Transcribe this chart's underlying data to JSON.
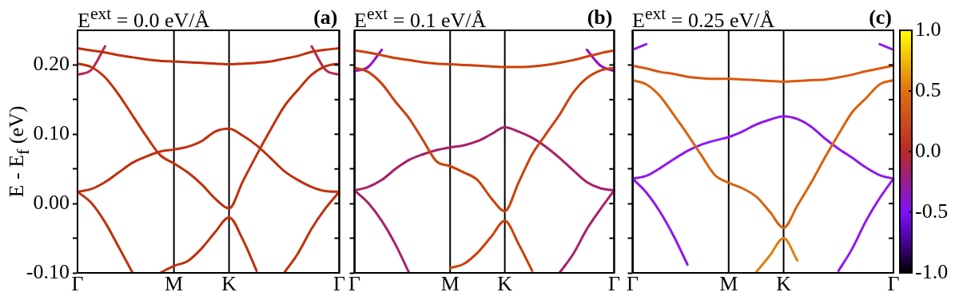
{
  "chart_data": [
    {
      "type": "line",
      "title": "E$^{ext}$ = 0.0 eV/Å",
      "annotations": [
        "(a)"
      ],
      "ylabel": "E - E$_{f}$ (eV)",
      "grid": "x",
      "categories": [
        "Γ",
        null,
        null,
        null,
        null,
        null,
        null,
        "M",
        null,
        null,
        null,
        "K",
        null,
        null,
        null,
        null,
        null,
        null,
        null,
        "Γ"
      ],
      "ylim": [
        -0.1,
        0.25
      ],
      "yticks": [
        {
          "value": -0.1,
          "label": "-0.10"
        },
        {
          "value": -0.05,
          "label": null
        },
        {
          "value": 0,
          "label": "0.00"
        },
        {
          "value": 0.05,
          "label": null
        },
        {
          "value": 0.1,
          "label": "0.10"
        },
        {
          "value": 0.15,
          "label": null
        },
        {
          "value": 0.2,
          "label": "0.20"
        }
      ],
      "series": [
        {
          "color": "#c0300c",
          "values": [
            0.224,
            0.221,
            0.218,
            0.214,
            0.211,
            0.208,
            0.206,
            0.205,
            0.204,
            0.203,
            0.202,
            0.201,
            0.202,
            0.203,
            0.205,
            0.209,
            0.213,
            0.219,
            0.222,
            0.224
          ]
        },
        {
          "color": "#c0300c",
          "values": [
            0.202,
            0.197,
            0.182,
            0.157,
            0.127,
            0.097,
            0.07,
            0.058,
            0.045,
            0.028,
            0.007,
            -0.007,
            0.032,
            0.07,
            0.106,
            0.14,
            0.164,
            0.186,
            0.198,
            0.202
          ]
        },
        {
          "color": "#c0300c",
          "values": [
            0.017,
            0.021,
            0.031,
            0.045,
            0.059,
            0.068,
            0.075,
            0.078,
            0.082,
            0.09,
            0.104,
            0.108,
            0.098,
            0.084,
            0.066,
            0.047,
            0.034,
            0.024,
            0.018,
            0.017
          ]
        },
        {
          "color": "#c0300c",
          "values": [
            0.017,
            0.001,
            -0.027,
            -0.063,
            -0.1,
            null,
            null,
            null,
            null,
            null,
            null,
            null,
            null,
            null,
            null,
            -0.1,
            -0.072,
            -0.036,
            -0.007,
            0.017
          ]
        },
        {
          "color": "#c0300c",
          "values": [
            null,
            null,
            null,
            null,
            null,
            null,
            -0.1,
            -0.09,
            -0.083,
            -0.065,
            -0.041,
            -0.02,
            -0.052,
            -0.097,
            null,
            null,
            null,
            null,
            null,
            null
          ]
        },
        {
          "color": "#b8284a",
          "values": [
            0.186,
            0.193,
            0.227,
            null,
            null,
            null,
            null,
            null,
            null,
            null,
            null,
            null,
            null,
            null,
            null,
            null,
            null,
            0.227,
            0.193,
            0.186
          ]
        }
      ]
    },
    {
      "type": "line",
      "title": "E$^{ext}$ = 0.1 eV/Å",
      "annotations": [
        "(b)"
      ],
      "grid": "x",
      "tick_labels": "x",
      "categories": [
        "Γ",
        null,
        null,
        null,
        null,
        null,
        null,
        "M",
        null,
        null,
        null,
        "K",
        null,
        null,
        null,
        null,
        null,
        null,
        null,
        "Γ"
      ],
      "ylim": [
        -0.1,
        0.25
      ],
      "yticks": [
        -0.1,
        -0.05,
        0,
        0.05,
        0.1,
        0.15,
        0.2
      ],
      "series": [
        {
          "color": "#cc400a",
          "values": [
            0.221,
            0.218,
            0.214,
            0.21,
            0.207,
            0.204,
            0.202,
            0.201,
            0.2,
            0.199,
            0.198,
            0.197,
            0.197,
            0.198,
            0.2,
            0.203,
            0.207,
            0.212,
            0.217,
            0.221
          ]
        },
        {
          "color": "#cc400a",
          "values": [
            0.196,
            0.19,
            0.173,
            0.147,
            0.123,
            0.092,
            0.061,
            0.054,
            0.045,
            0.034,
            0.008,
            -0.011,
            0.03,
            0.071,
            0.1,
            0.128,
            0.16,
            0.181,
            0.192,
            0.196
          ]
        },
        {
          "color": "#a82068",
          "values": [
            0.019,
            0.024,
            0.034,
            0.05,
            0.063,
            0.071,
            0.077,
            0.081,
            0.084,
            0.09,
            0.1,
            0.11,
            0.104,
            0.095,
            0.082,
            0.066,
            0.048,
            0.031,
            0.022,
            0.019
          ]
        },
        {
          "color": "#a82068",
          "values": [
            0.019,
            0.001,
            -0.025,
            -0.059,
            -0.1,
            null,
            null,
            null,
            null,
            null,
            null,
            null,
            null,
            null,
            null,
            -0.1,
            -0.073,
            -0.037,
            -0.008,
            0.019
          ]
        },
        {
          "color": "#cc400a",
          "values": [
            null,
            null,
            null,
            null,
            null,
            null,
            null,
            -0.093,
            -0.087,
            -0.071,
            -0.048,
            -0.025,
            -0.058,
            -0.097,
            null,
            null,
            null,
            null,
            null,
            null
          ]
        },
        {
          "color": "#9010c8",
          "values": [
            0.191,
            0.197,
            0.222,
            null,
            null,
            null,
            null,
            null,
            null,
            null,
            null,
            null,
            null,
            null,
            null,
            null,
            null,
            0.222,
            0.199,
            0.191
          ]
        }
      ]
    },
    {
      "type": "line",
      "title": "E$^{ext}$ = 0.25 eV/Å",
      "annotations": [
        "(c)"
      ],
      "grid": "x",
      "tick_labels": "x",
      "categories": [
        "Γ",
        null,
        null,
        null,
        null,
        null,
        null,
        "M",
        null,
        null,
        null,
        "K",
        null,
        null,
        null,
        null,
        null,
        null,
        null,
        "Γ"
      ],
      "ylim": [
        -0.1,
        0.25
      ],
      "yticks": [
        -0.1,
        -0.05,
        0,
        0.05,
        0.1,
        0.15,
        0.2
      ],
      "clim": [
        -1,
        1
      ],
      "cticks": [
        {
          "value": -1,
          "label": "-1.0"
        },
        {
          "value": -0.5,
          "label": "-0.5"
        },
        {
          "value": 0,
          "label": "0.0"
        },
        {
          "value": 0.5,
          "label": "0.5"
        },
        {
          "value": 1,
          "label": "1.0"
        }
      ],
      "series": [
        {
          "color": "#d8580e",
          "values": [
            0.199,
            0.195,
            0.19,
            0.187,
            0.183,
            0.181,
            0.18,
            0.18,
            0.179,
            0.178,
            0.177,
            0.176,
            0.177,
            0.178,
            0.179,
            0.182,
            0.186,
            0.191,
            0.195,
            0.199
          ]
        },
        {
          "color": "#d8620e",
          "values": [
            0.178,
            0.172,
            0.155,
            0.128,
            0.1,
            0.07,
            0.041,
            0.03,
            0.022,
            0.01,
            -0.012,
            -0.035,
            -0.003,
            0.03,
            0.066,
            0.1,
            0.132,
            0.152,
            0.172,
            0.178
          ]
        },
        {
          "color": "#9018f0",
          "values": [
            0.036,
            0.04,
            0.051,
            0.064,
            0.076,
            0.085,
            0.091,
            0.096,
            0.104,
            0.114,
            0.121,
            0.126,
            0.122,
            0.111,
            0.094,
            0.079,
            0.066,
            0.052,
            0.041,
            0.036
          ]
        },
        {
          "color": "#9018f0",
          "values": [
            0.036,
            0.016,
            -0.012,
            -0.047,
            -0.088,
            null,
            null,
            null,
            null,
            null,
            null,
            null,
            null,
            null,
            null,
            -0.097,
            -0.065,
            -0.025,
            0.008,
            0.036
          ]
        },
        {
          "color": "#e08010",
          "values": [
            null,
            null,
            null,
            null,
            null,
            null,
            null,
            null,
            null,
            -0.099,
            -0.075,
            -0.05,
            -0.082,
            null,
            null,
            null,
            null,
            null,
            null,
            null
          ]
        },
        {
          "color": "#9018f0",
          "values": [
            0.222,
            0.23,
            null,
            null,
            null,
            null,
            null,
            null,
            null,
            null,
            null,
            null,
            null,
            null,
            null,
            null,
            null,
            null,
            0.23,
            0.222
          ]
        }
      ]
    }
  ]
}
